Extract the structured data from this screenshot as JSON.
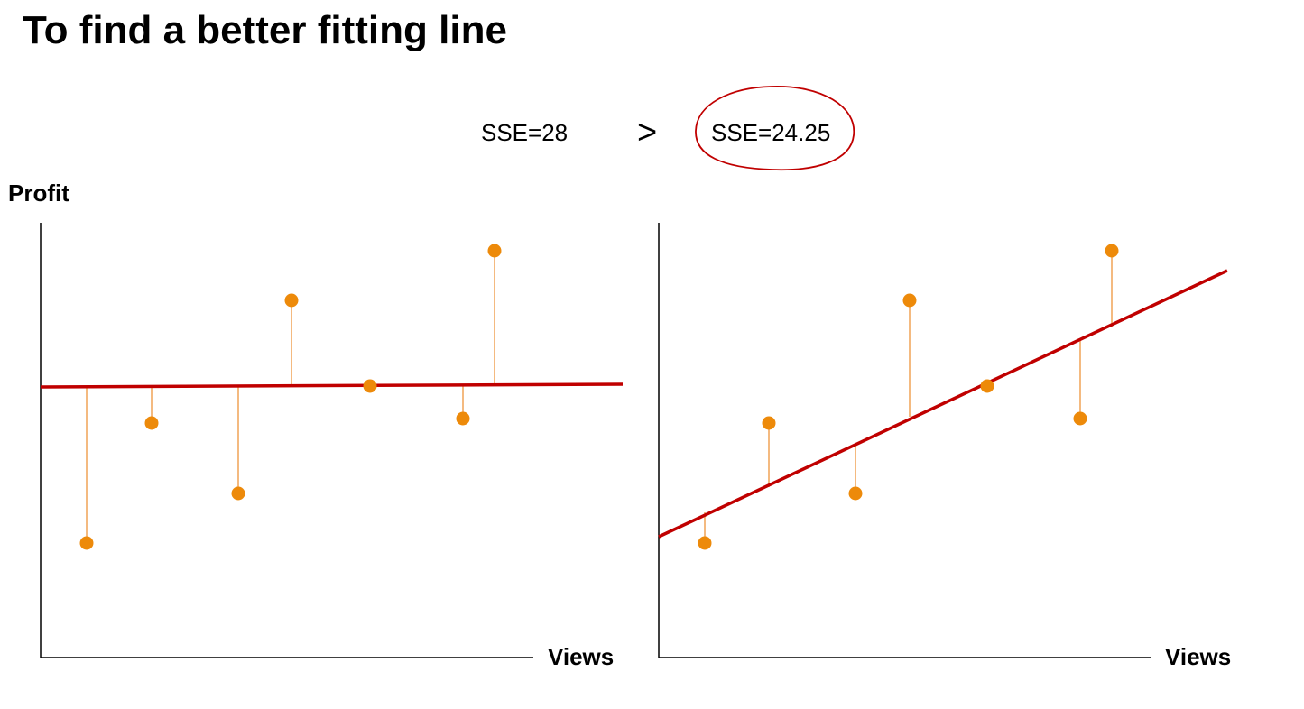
{
  "title": "To find a better fitting line",
  "comparison": {
    "left_sse": "SSE=28",
    "operator": ">",
    "right_sse": "SSE=24.25",
    "highlighted": "right"
  },
  "y_axis_label": "Profit",
  "x_axis_label": "Views",
  "colors": {
    "point": "#ED8A0A",
    "residual": "#F2A860",
    "fit_line": "#C00000",
    "highlight_ellipse": "#C00000",
    "axis": "#000000"
  },
  "panels": [
    {
      "id": "left",
      "fit": "horizontal",
      "x_label": "Views"
    },
    {
      "id": "right",
      "fit": "sloped",
      "x_label": "Views"
    }
  ]
}
